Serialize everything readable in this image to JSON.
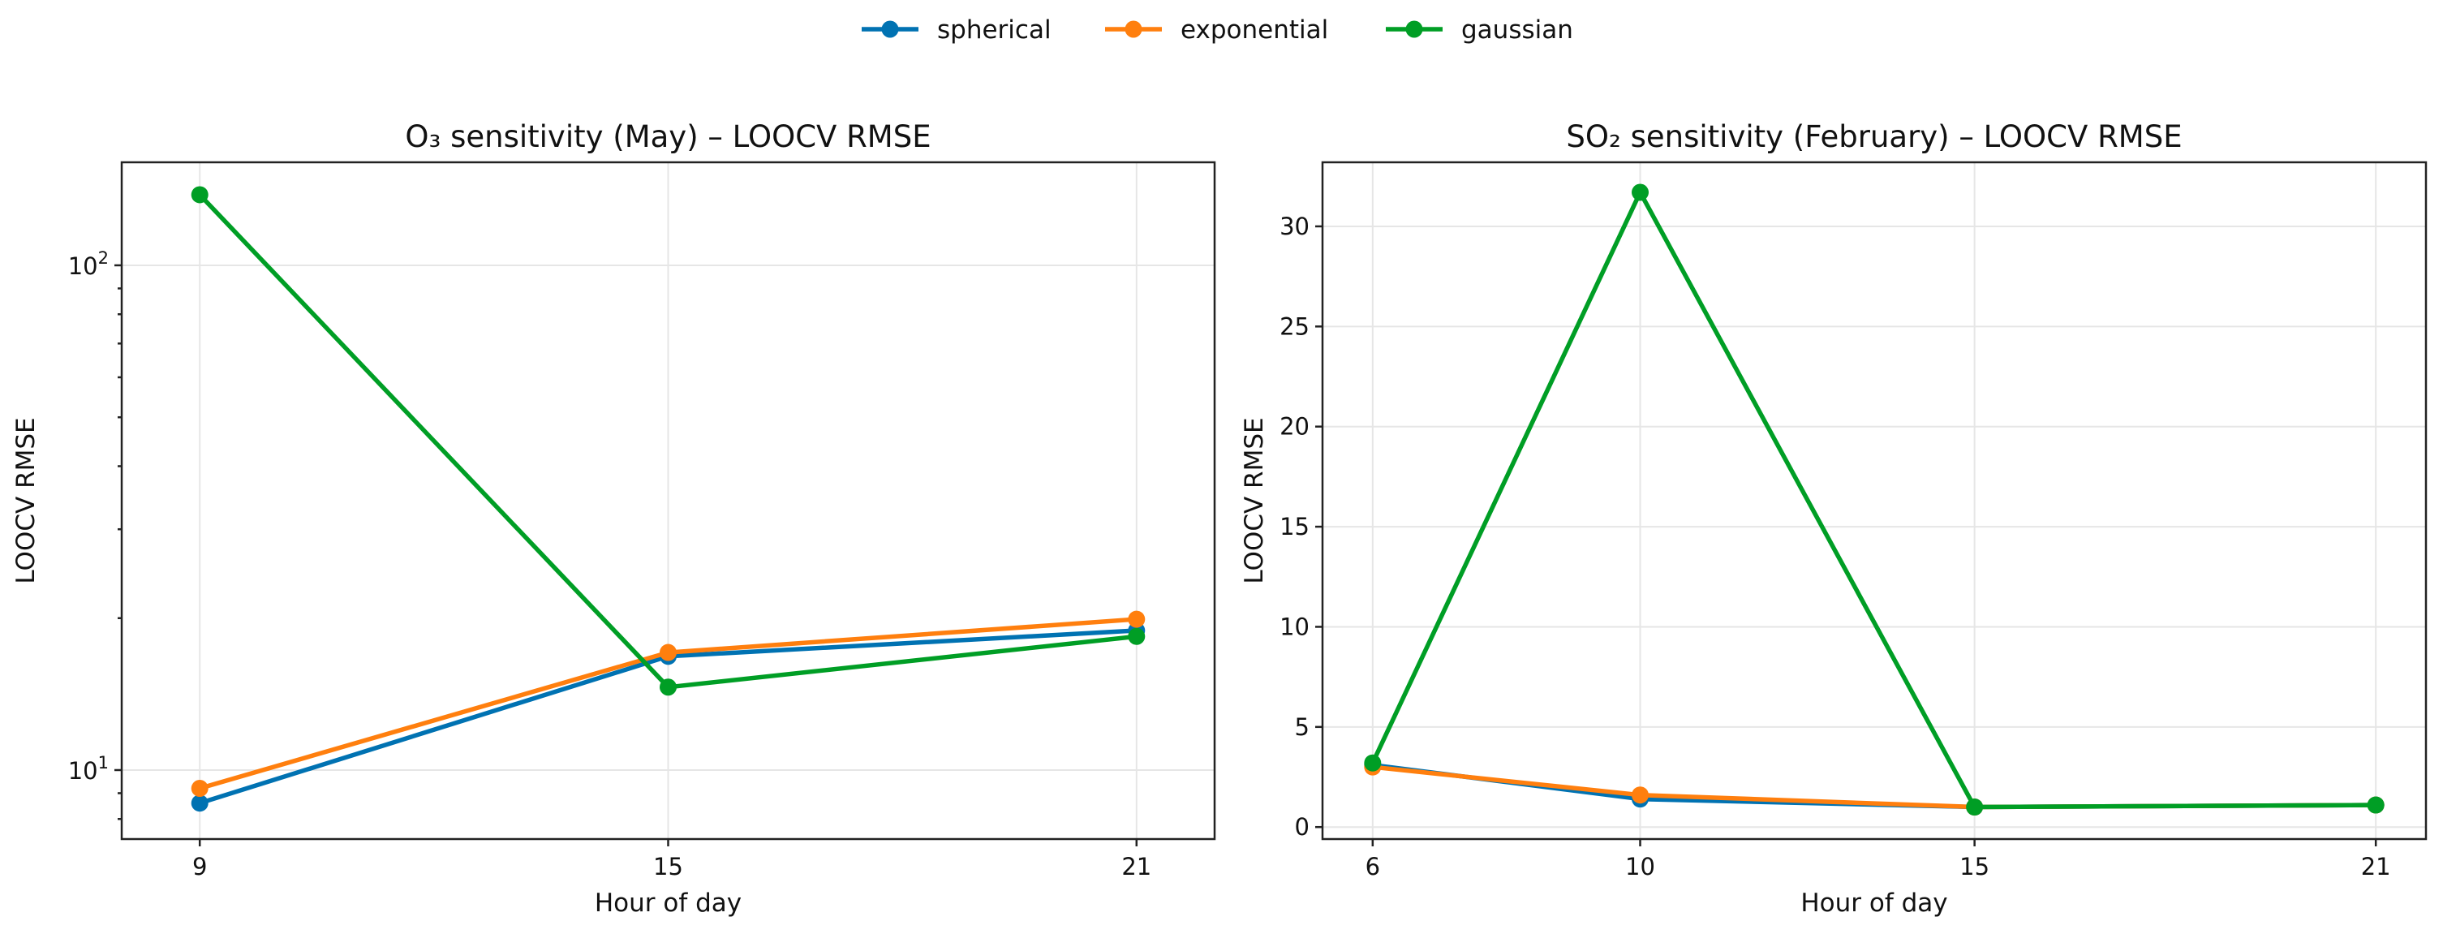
{
  "chart_data": [
    {
      "type": "line",
      "title": "O₃ sensitivity (May) – LOOCV RMSE",
      "xlabel": "Hour of day",
      "ylabel": "LOOCV RMSE",
      "yscale": "log",
      "x": [
        9,
        15,
        21
      ],
      "x_ticks": [
        "9",
        "15",
        "21"
      ],
      "xlim": [
        8.0,
        22.0
      ],
      "ylim": [
        7.3,
        160
      ],
      "y_ticks": [
        {
          "value": 10,
          "base": "10",
          "exp": "1"
        },
        {
          "value": 100,
          "base": "10",
          "exp": "2"
        }
      ],
      "grid": true,
      "series": [
        {
          "name": "spherical",
          "color": "#0072B2",
          "values": [
            8.6,
            16.8,
            18.9
          ]
        },
        {
          "name": "exponential",
          "color": "#FF7F0E",
          "values": [
            9.2,
            17.1,
            19.9
          ]
        },
        {
          "name": "gaussian",
          "color": "#009E25",
          "values": [
            138,
            14.6,
            18.4
          ]
        }
      ]
    },
    {
      "type": "line",
      "title": "SO₂ sensitivity (February) – LOOCV RMSE",
      "xlabel": "Hour of day",
      "ylabel": "LOOCV RMSE",
      "yscale": "linear",
      "x": [
        6,
        10,
        15,
        21
      ],
      "x_ticks": [
        "6",
        "10",
        "15",
        "21"
      ],
      "xlim": [
        5.25,
        21.75
      ],
      "ylim": [
        -0.6,
        33.2
      ],
      "y_ticks": [
        0,
        5,
        10,
        15,
        20,
        25,
        30
      ],
      "grid": true,
      "series": [
        {
          "name": "spherical",
          "color": "#0072B2",
          "values": [
            3.1,
            1.4,
            1.0,
            1.1
          ]
        },
        {
          "name": "exponential",
          "color": "#FF7F0E",
          "values": [
            3.0,
            1.6,
            1.0,
            1.1
          ]
        },
        {
          "name": "gaussian",
          "color": "#009E25",
          "values": [
            3.2,
            31.7,
            1.0,
            1.1
          ]
        }
      ]
    }
  ],
  "legend": {
    "placement": "top-center",
    "items": [
      {
        "label": "spherical",
        "color": "#0072B2"
      },
      {
        "label": "exponential",
        "color": "#FF7F0E"
      },
      {
        "label": "gaussian",
        "color": "#009E25"
      }
    ]
  }
}
